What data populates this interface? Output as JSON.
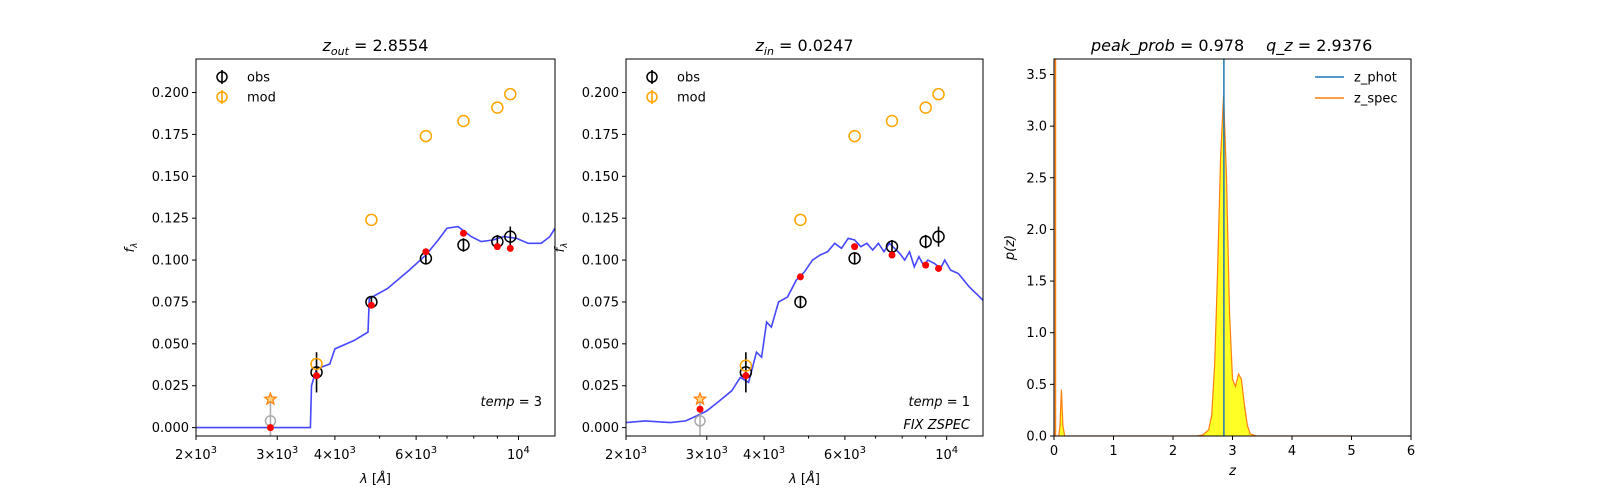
{
  "chart_data": [
    {
      "type": "scatter",
      "title": {
        "var": "z",
        "sub": "out",
        "value": "= 2.8554"
      },
      "xlabel": {
        "pre": "λ [",
        "unit": "Å",
        "post": "]"
      },
      "ylabel": "f",
      "ylabel_sub": "λ",
      "xscale": "log",
      "xlim": [
        2000,
        12000
      ],
      "ylim": [
        -0.005,
        0.22
      ],
      "xticks": [
        {
          "v": 2000,
          "m": "2×10",
          "e": "3"
        },
        {
          "v": 3000,
          "m": "3×10",
          "e": "3"
        },
        {
          "v": 4000,
          "m": "4×10",
          "e": "3"
        },
        {
          "v": 6000,
          "m": "6×10",
          "e": "3"
        },
        {
          "v": 10000,
          "m": "10",
          "e": "4"
        }
      ],
      "yticks": [
        "0.000",
        "0.025",
        "0.050",
        "0.075",
        "0.100",
        "0.125",
        "0.150",
        "0.175",
        "0.200"
      ],
      "annotations": [
        {
          "text": "temp = 3",
          "italic_part": "temp"
        }
      ],
      "legend": {
        "placement": "upper-left",
        "entries": [
          "obs",
          "mod"
        ]
      },
      "colors": {
        "obs": "#000000",
        "mod": "#ffa500",
        "model_points": "#ff0000",
        "sed": "#3333ff",
        "upper_limit": "#aaaaaa",
        "star": "#ff7f0e"
      },
      "obs": [
        {
          "x": 3650,
          "y": 0.033,
          "err": 0.012
        },
        {
          "x": 4800,
          "y": 0.075,
          "err": 0.003
        },
        {
          "x": 6300,
          "y": 0.101,
          "err": 0.003
        },
        {
          "x": 7600,
          "y": 0.109,
          "err": 0.004
        },
        {
          "x": 9000,
          "y": 0.111,
          "err": 0.004
        },
        {
          "x": 9600,
          "y": 0.114,
          "err": 0.006
        }
      ],
      "upper_limit": {
        "x": 2900,
        "y": 0.004,
        "err": 0.012
      },
      "mod": [
        {
          "x": 3650,
          "y": 0.038
        },
        {
          "x": 4800,
          "y": 0.124
        },
        {
          "x": 6300,
          "y": 0.174
        },
        {
          "x": 7600,
          "y": 0.183
        },
        {
          "x": 9000,
          "y": 0.191
        },
        {
          "x": 9600,
          "y": 0.199
        }
      ],
      "model_points": [
        {
          "x": 2900,
          "y": 0.0
        },
        {
          "x": 3650,
          "y": 0.031
        },
        {
          "x": 4800,
          "y": 0.073
        },
        {
          "x": 6300,
          "y": 0.105
        },
        {
          "x": 7600,
          "y": 0.116
        },
        {
          "x": 9000,
          "y": 0.108
        },
        {
          "x": 9600,
          "y": 0.107
        }
      ],
      "star": {
        "x": 2900,
        "y": 0.017
      },
      "sed_line": [
        [
          2000,
          0.0
        ],
        [
          3540,
          0.0
        ],
        [
          3560,
          0.025
        ],
        [
          3650,
          0.035
        ],
        [
          3900,
          0.038
        ],
        [
          4000,
          0.047
        ],
        [
          4400,
          0.052
        ],
        [
          4720,
          0.057
        ],
        [
          4750,
          0.077
        ],
        [
          5200,
          0.083
        ],
        [
          5800,
          0.094
        ],
        [
          6300,
          0.103
        ],
        [
          6700,
          0.112
        ],
        [
          7000,
          0.119
        ],
        [
          7400,
          0.12
        ],
        [
          7900,
          0.114
        ],
        [
          8300,
          0.111
        ],
        [
          8800,
          0.112
        ],
        [
          9300,
          0.114
        ],
        [
          9900,
          0.113
        ],
        [
          10500,
          0.11
        ],
        [
          11200,
          0.11
        ],
        [
          11700,
          0.114
        ],
        [
          12000,
          0.119
        ]
      ]
    },
    {
      "type": "scatter",
      "title": {
        "var": "z",
        "sub": "in",
        "value": "= 0.0247"
      },
      "xlabel": {
        "pre": "λ [",
        "unit": "Å",
        "post": "]"
      },
      "ylabel": "f",
      "ylabel_sub": "λ",
      "xscale": "log",
      "xlim": [
        2000,
        12000
      ],
      "ylim": [
        -0.005,
        0.22
      ],
      "xticks": [
        {
          "v": 2000,
          "m": "2×10",
          "e": "3"
        },
        {
          "v": 3000,
          "m": "3×10",
          "e": "3"
        },
        {
          "v": 4000,
          "m": "4×10",
          "e": "3"
        },
        {
          "v": 6000,
          "m": "6×10",
          "e": "3"
        },
        {
          "v": 10000,
          "m": "10",
          "e": "4"
        }
      ],
      "yticks": [
        "0.000",
        "0.025",
        "0.050",
        "0.075",
        "0.100",
        "0.125",
        "0.150",
        "0.175",
        "0.200"
      ],
      "annotations": [
        {
          "text": "temp = 1",
          "italic_part": "temp"
        },
        {
          "text": "FIX ZSPEC",
          "italic_part": "FIX ZSPEC"
        }
      ],
      "legend": {
        "placement": "upper-left",
        "entries": [
          "obs",
          "mod"
        ]
      },
      "colors": {
        "obs": "#000000",
        "mod": "#ffa500",
        "model_points": "#ff0000",
        "sed": "#3333ff",
        "upper_limit": "#aaaaaa",
        "star": "#ff7f0e"
      },
      "obs": [
        {
          "x": 3650,
          "y": 0.033,
          "err": 0.012
        },
        {
          "x": 4800,
          "y": 0.075,
          "err": 0.003
        },
        {
          "x": 6300,
          "y": 0.101,
          "err": 0.003
        },
        {
          "x": 7600,
          "y": 0.108,
          "err": 0.004
        },
        {
          "x": 9000,
          "y": 0.111,
          "err": 0.004
        },
        {
          "x": 9600,
          "y": 0.114,
          "err": 0.006
        }
      ],
      "upper_limit": {
        "x": 2900,
        "y": 0.004,
        "err": 0.012
      },
      "mod": [
        {
          "x": 3650,
          "y": 0.037
        },
        {
          "x": 4800,
          "y": 0.124
        },
        {
          "x": 6300,
          "y": 0.174
        },
        {
          "x": 7600,
          "y": 0.183
        },
        {
          "x": 9000,
          "y": 0.191
        },
        {
          "x": 9600,
          "y": 0.199
        }
      ],
      "model_points": [
        {
          "x": 2900,
          "y": 0.011
        },
        {
          "x": 3650,
          "y": 0.031
        },
        {
          "x": 4800,
          "y": 0.09
        },
        {
          "x": 6300,
          "y": 0.108
        },
        {
          "x": 7600,
          "y": 0.103
        },
        {
          "x": 9000,
          "y": 0.097
        },
        {
          "x": 9600,
          "y": 0.095
        }
      ],
      "star": {
        "x": 2900,
        "y": 0.017
      },
      "sed_line": [
        [
          2000,
          0.003
        ],
        [
          2200,
          0.004
        ],
        [
          2500,
          0.003
        ],
        [
          2700,
          0.004
        ],
        [
          2850,
          0.007
        ],
        [
          3000,
          0.01
        ],
        [
          3200,
          0.016
        ],
        [
          3400,
          0.022
        ],
        [
          3550,
          0.03
        ],
        [
          3700,
          0.027
        ],
        [
          3850,
          0.045
        ],
        [
          3950,
          0.042
        ],
        [
          4050,
          0.063
        ],
        [
          4150,
          0.06
        ],
        [
          4300,
          0.075
        ],
        [
          4500,
          0.078
        ],
        [
          4700,
          0.088
        ],
        [
          4900,
          0.093
        ],
        [
          5100,
          0.1
        ],
        [
          5300,
          0.103
        ],
        [
          5500,
          0.105
        ],
        [
          5700,
          0.11
        ],
        [
          5900,
          0.107
        ],
        [
          6100,
          0.113
        ],
        [
          6300,
          0.112
        ],
        [
          6500,
          0.108
        ],
        [
          6700,
          0.11
        ],
        [
          6900,
          0.106
        ],
        [
          7100,
          0.11
        ],
        [
          7300,
          0.105
        ],
        [
          7500,
          0.11
        ],
        [
          7700,
          0.107
        ],
        [
          7900,
          0.104
        ],
        [
          8100,
          0.1
        ],
        [
          8300,
          0.105
        ],
        [
          8500,
          0.096
        ],
        [
          8700,
          0.102
        ],
        [
          8900,
          0.097
        ],
        [
          9100,
          0.1
        ],
        [
          9400,
          0.098
        ],
        [
          9700,
          0.095
        ],
        [
          9900,
          0.1
        ],
        [
          10200,
          0.094
        ],
        [
          10600,
          0.092
        ],
        [
          11200,
          0.084
        ],
        [
          11700,
          0.079
        ],
        [
          12000,
          0.076
        ]
      ]
    },
    {
      "type": "line",
      "title_parts": [
        {
          "italic": "peak_prob",
          "value": " = 0.978"
        },
        {
          "italic": "q_z",
          "value": " = 2.9376"
        }
      ],
      "xlabel": "z",
      "ylabel": "p(z)",
      "xlim": [
        0,
        6
      ],
      "ylim": [
        0,
        3.65
      ],
      "xticks": [
        "0",
        "1",
        "2",
        "3",
        "4",
        "5",
        "6"
      ],
      "yticks": [
        "0.0",
        "0.5",
        "1.0",
        "1.5",
        "2.0",
        "2.5",
        "3.0",
        "3.5"
      ],
      "legend": {
        "placement": "upper-right",
        "entries": [
          "z_phot",
          "z_spec"
        ]
      },
      "colors": {
        "z_phot": "#1f77b4",
        "z_spec": "#ff7f0e",
        "fill": "#ffff00"
      },
      "z_phot": 2.8554,
      "z_spec": 0.0247,
      "pz_curve": [
        [
          0.0,
          0.0
        ],
        [
          0.08,
          0.0
        ],
        [
          0.1,
          0.1
        ],
        [
          0.125,
          0.45
        ],
        [
          0.15,
          0.1
        ],
        [
          0.18,
          0.0
        ],
        [
          2.4,
          0.0
        ],
        [
          2.5,
          0.01
        ],
        [
          2.6,
          0.06
        ],
        [
          2.65,
          0.2
        ],
        [
          2.7,
          0.7
        ],
        [
          2.75,
          1.6
        ],
        [
          2.8,
          2.7
        ],
        [
          2.85,
          3.3
        ],
        [
          2.9,
          2.5
        ],
        [
          2.95,
          1.2
        ],
        [
          3.0,
          0.55
        ],
        [
          3.05,
          0.48
        ],
        [
          3.1,
          0.6
        ],
        [
          3.15,
          0.55
        ],
        [
          3.2,
          0.3
        ],
        [
          3.25,
          0.1
        ],
        [
          3.3,
          0.02
        ],
        [
          3.4,
          0.0
        ],
        [
          5.0,
          0.0
        ]
      ]
    }
  ]
}
